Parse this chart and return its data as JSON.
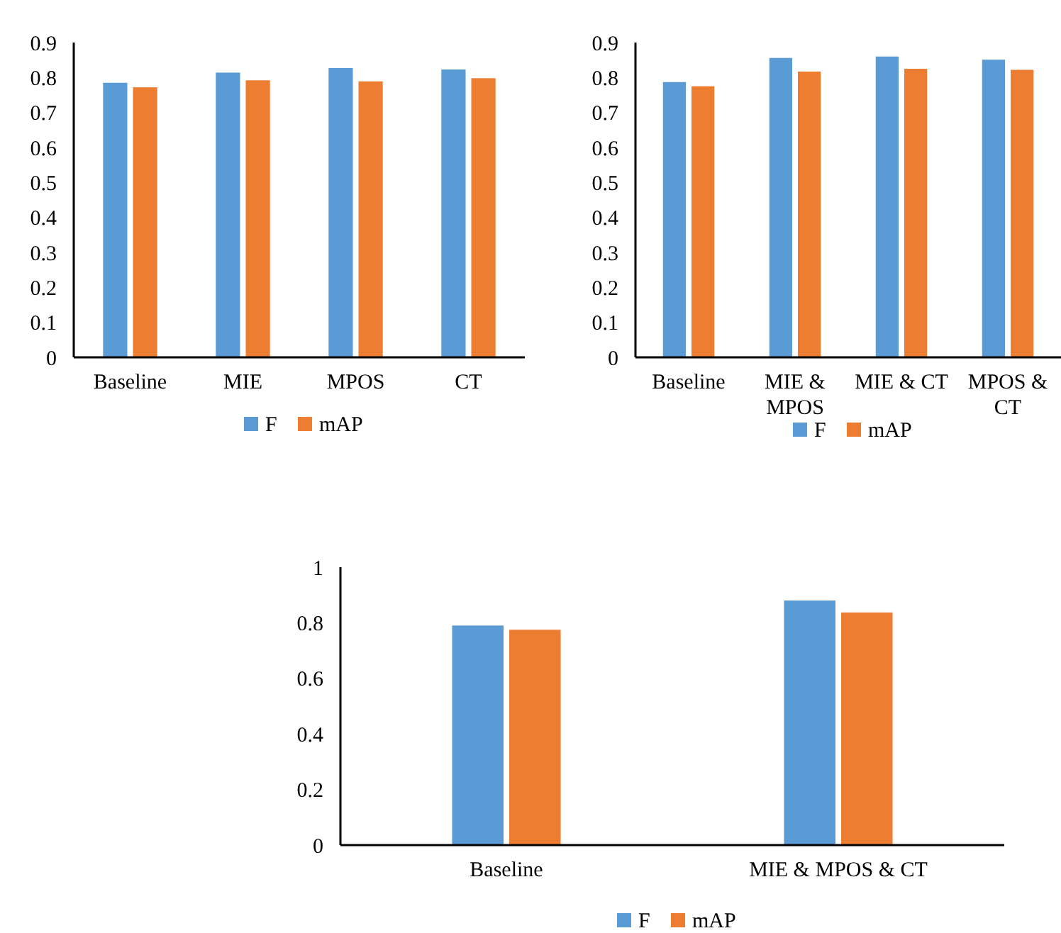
{
  "chart_data": [
    {
      "type": "bar",
      "categories": [
        "Baseline",
        "MIE",
        "MPOS",
        "CT"
      ],
      "series": [
        {
          "name": "F",
          "color": "#5b9bd5",
          "values": [
            0.785,
            0.814,
            0.827,
            0.823
          ]
        },
        {
          "name": "mAP",
          "color": "#ed7d31",
          "values": [
            0.772,
            0.792,
            0.789,
            0.798
          ]
        }
      ],
      "ylim": [
        0,
        0.9
      ],
      "yticks": [
        0,
        0.1,
        0.2,
        0.3,
        0.4,
        0.5,
        0.6,
        0.7,
        0.8,
        0.9
      ],
      "grid": false,
      "legend": "bottom"
    },
    {
      "type": "bar",
      "categories": [
        "Baseline",
        "MIE & MPOS",
        "MIE & CT",
        "MPOS & CT"
      ],
      "series": [
        {
          "name": "F",
          "color": "#5b9bd5",
          "values": [
            0.787,
            0.856,
            0.86,
            0.851
          ]
        },
        {
          "name": "mAP",
          "color": "#ed7d31",
          "values": [
            0.775,
            0.817,
            0.825,
            0.822
          ]
        }
      ],
      "ylim": [
        0,
        0.9
      ],
      "yticks": [
        0,
        0.1,
        0.2,
        0.3,
        0.4,
        0.5,
        0.6,
        0.7,
        0.8,
        0.9
      ],
      "grid": false,
      "legend": "bottom"
    },
    {
      "type": "bar",
      "categories": [
        "Baseline",
        "MIE & MPOS & CT"
      ],
      "series": [
        {
          "name": "F",
          "color": "#5b9bd5",
          "values": [
            0.79,
            0.88
          ]
        },
        {
          "name": "mAP",
          "color": "#ed7d31",
          "values": [
            0.775,
            0.837
          ]
        }
      ],
      "ylim": [
        0,
        1
      ],
      "yticks": [
        0,
        0.2,
        0.4,
        0.6,
        0.8,
        1
      ],
      "grid": false,
      "legend": "bottom"
    }
  ]
}
